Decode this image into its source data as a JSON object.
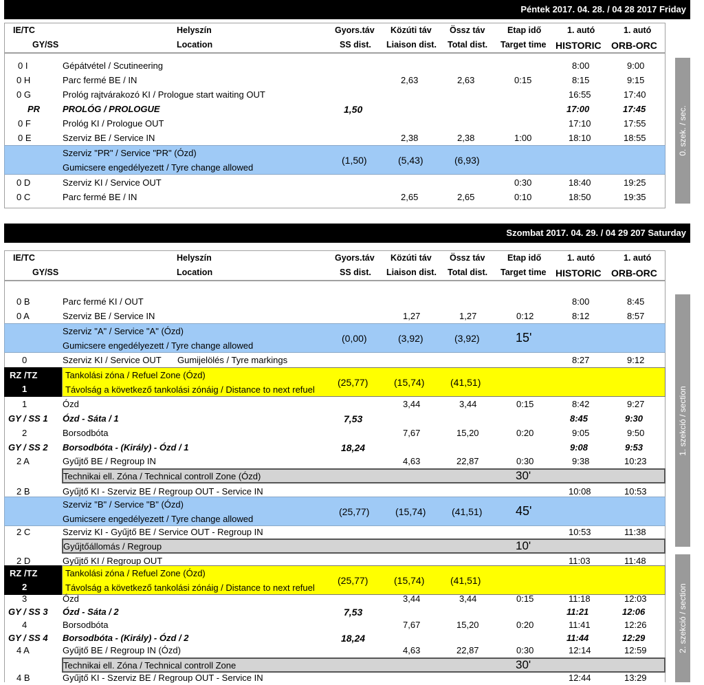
{
  "friday": {
    "date": "Péntek 2017. 04. 28. / 04 28 2017 Friday",
    "sidebar": "0. szek. / sec.",
    "rows": [
      {
        "code": "0 I",
        "loc": "Gépátvétel / Scutineering",
        "ss": "",
        "li": "",
        "tot": "",
        "tt": "",
        "h": "8:00",
        "o": "9:00"
      },
      {
        "code": "0 H",
        "loc": "Parc fermé BE / IN",
        "ss": "",
        "li": "2,63",
        "tot": "2,63",
        "tt": "0:15",
        "h": "8:15",
        "o": "9:15"
      },
      {
        "code": "0 G",
        "loc": "Prológ rajtvárakozó KI / Prologue start waiting OUT",
        "ss": "",
        "li": "",
        "tot": "",
        "tt": "",
        "h": "16:55",
        "o": "17:40"
      },
      {
        "code": "PR",
        "loc": "PROLÓG / PROLOGUE",
        "ss": "1,50",
        "li": "",
        "tot": "",
        "tt": "",
        "h": "17:00",
        "o": "17:45"
      },
      {
        "code": "0 F",
        "loc": "Prológ KI / Prologue OUT",
        "ss": "",
        "li": "",
        "tot": "",
        "tt": "",
        "h": "17:10",
        "o": "17:55"
      },
      {
        "code": "0 E",
        "loc": "Szerviz BE / Service IN",
        "ss": "",
        "li": "2,38",
        "tot": "2,38",
        "tt": "1:00",
        "h": "18:10",
        "o": "18:55"
      }
    ],
    "service_pr": {
      "line1": "Szerviz \"PR\" / Service \"PR\" (Ózd)",
      "line2": "Gumicsere engedélyezett / Tyre change allowed",
      "ss": "(1,50)",
      "li": "(5,43)",
      "tot": "(6,93)"
    },
    "rows2": [
      {
        "code": "0 D",
        "loc": "Szerviz KI / Service OUT",
        "ss": "",
        "li": "",
        "tot": "",
        "tt": "0:30",
        "h": "18:40",
        "o": "19:25"
      },
      {
        "code": "0 C",
        "loc": "Parc fermé BE / IN",
        "ss": "",
        "li": "2,65",
        "tot": "2,65",
        "tt": "0:10",
        "h": "18:50",
        "o": "19:35"
      }
    ]
  },
  "header": {
    "c1a": "IE/TC",
    "c1b": "GY/SS",
    "c2a": "Helyszín",
    "c2b": "Location",
    "c3a": "Gyors.táv",
    "c3b": "SS dist.",
    "c4a": "Közúti táv",
    "c4b": "Liaison dist.",
    "c5a": "Össz táv",
    "c5b": "Total dist.",
    "c6a": "Etap idő",
    "c6b": "Target time",
    "c7a": "1. autó",
    "c7b": "HISTORIC",
    "c8a": "1. autó",
    "c8b": "ORB-ORC"
  },
  "saturday": {
    "date": "Szombat 2017. 04. 29. / 04 29 207 Saturday",
    "sidebar1": "1. szekció / section",
    "sidebar2": "2. szekció / section",
    "r0b": {
      "code": "0 B",
      "loc": "Parc fermé KI / OUT",
      "h": "8:00",
      "o": "8:45"
    },
    "r0a": {
      "code": "0 A",
      "loc": "Szerviz BE / Service IN",
      "li": "1,27",
      "tot": "1,27",
      "tt": "0:12",
      "h": "8:12",
      "o": "8:57"
    },
    "service_a": {
      "line1": "Szerviz \"A\" / Service \"A\" (Ózd)",
      "line2": "Gumicsere engedélyezett / Tyre change allowed",
      "ss": "(0,00)",
      "li": "(3,92)",
      "tot": "(3,92)",
      "tt": "15'"
    },
    "r0": {
      "code": "0",
      "loc": "Szerviz KI / Service OUT",
      "extra": "Gumijelölés / Tyre markings",
      "h": "8:27",
      "o": "9:12"
    },
    "rz1": {
      "t1": "RZ /TZ",
      "t2": "1",
      "line1": "Tankolási zóna / Refuel Zone (Ózd)",
      "line2": "Távolság a következő tankolási zónáig / Distance to next refuel",
      "ss": "(25,77)",
      "li": "(15,74)",
      "tot": "(41,51)"
    },
    "r1": {
      "code": "1",
      "loc": "Ózd",
      "li": "3,44",
      "tot": "3,44",
      "tt": "0:15",
      "h": "8:42",
      "o": "9:27"
    },
    "ss1": {
      "code": "GY / SS 1",
      "loc": "Ózd - Sáta / 1",
      "ss": "7,53",
      "h": "8:45",
      "o": "9:30"
    },
    "r2": {
      "code": "2",
      "loc": "Borsodbóta",
      "li": "7,67",
      "tot": "15,20",
      "tt": "0:20",
      "h": "9:05",
      "o": "9:50"
    },
    "ss2": {
      "code": "GY / SS 2",
      "loc": "Borsodbóta - (Király) - Ózd / 1",
      "ss": "18,24",
      "h": "9:08",
      "o": "9:53"
    },
    "r2a": {
      "code": "2 A",
      "loc": "Gyűjtő BE / Regroup IN",
      "li": "4,63",
      "tot": "22,87",
      "tt": "0:30",
      "h": "9:38",
      "o": "10:23"
    },
    "tc1": {
      "loc": "Technikai ell. Zóna / Technical controll Zone (Ózd)",
      "tt": "30'"
    },
    "r2b": {
      "code": "2 B",
      "loc": "Gyűjtő KI - Szerviz BE / Regroup OUT - Service IN",
      "h": "10:08",
      "o": "10:53"
    },
    "service_b": {
      "line1": "Szerviz \"B\" / Service \"B\" (Ózd)",
      "line2": "Gumicsere engedélyezett / Tyre change allowed",
      "ss": "(25,77)",
      "li": "(15,74)",
      "tot": "(41,51)",
      "tt": "45'"
    },
    "r2c": {
      "code": "2 C",
      "loc": "Szerviz KI - Gyűjtő BE / Service OUT - Regroup IN",
      "h": "10:53",
      "o": "11:38"
    },
    "regroup": {
      "loc": "Gyűjtőállomás / Regroup",
      "tt": "10'"
    },
    "r2d": {
      "code": "2 D",
      "loc": "Gyűjtő KI / Regroup OUT",
      "h": "11:03",
      "o": "11:48"
    },
    "rz2": {
      "t1": "RZ /TZ",
      "t2": "2",
      "line1": "Tankolási zóna / Refuel Zone (Ózd)",
      "line2": "Távolság a következő tankolási zónáig / Distance to next refuel",
      "ss": "(25,77)",
      "li": "(15,74)",
      "tot": "(41,51)"
    },
    "r3": {
      "code": "3",
      "loc": "Ózd",
      "li": "3,44",
      "tot": "3,44",
      "tt": "0:15",
      "h": "11:18",
      "o": "12:03"
    },
    "ss3": {
      "code": "GY / SS 3",
      "loc": "Ózd - Sáta / 2",
      "ss": "7,53",
      "h": "11:21",
      "o": "12:06"
    },
    "r4": {
      "code": "4",
      "loc": "Borsodbóta",
      "li": "7,67",
      "tot": "15,20",
      "tt": "0:20",
      "h": "11:41",
      "o": "12:26"
    },
    "ss4": {
      "code": "GY / SS 4",
      "loc": "Borsodbóta - (Király) - Ózd / 2",
      "ss": "18,24",
      "h": "11:44",
      "o": "12:29"
    },
    "r4a": {
      "code": "4 A",
      "loc": "Gyűjtő BE / Regroup IN (Ózd)",
      "li": "4,63",
      "tot": "22,87",
      "tt": "0:30",
      "h": "12:14",
      "o": "12:59"
    },
    "tc2": {
      "loc": "Technikai ell. Zóna / Technical controll Zone",
      "tt": "30'"
    },
    "r4b": {
      "code": "4 B",
      "loc": "Gyűjtő KI - Szerviz BE / Regroup OUT - Service IN",
      "h": "12:44",
      "o": "13:29"
    }
  }
}
